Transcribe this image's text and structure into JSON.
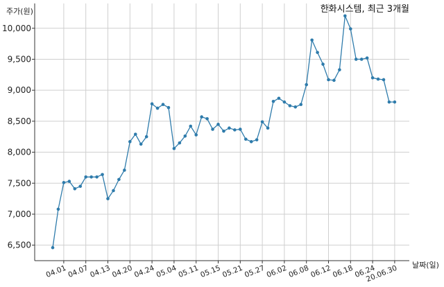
{
  "chart_data": {
    "type": "line",
    "title": "한화시스템, 최근 3개월",
    "ylabel": "주가(원)",
    "xlabel": "날짜(일)",
    "ylim": [
      6250,
      10400
    ],
    "yticks": [
      6500,
      7000,
      7500,
      8000,
      8500,
      9000,
      9500,
      10000
    ],
    "ytick_labels": [
      "6,500",
      "7,000",
      "7,500",
      "8,000",
      "8,500",
      "9,000",
      "9,500",
      "10,000"
    ],
    "grid": true,
    "color": "#2e7bab",
    "x": [
      "03.30",
      "03.31",
      "04.01",
      "04.02",
      "04.03",
      "04.06",
      "04.07",
      "04.08",
      "04.09",
      "04.10",
      "04.13",
      "04.14",
      "04.16",
      "04.17",
      "04.20",
      "04.21",
      "04.22",
      "04.23",
      "04.24",
      "04.27",
      "04.28",
      "04.29",
      "05.04",
      "05.06",
      "05.07",
      "05.08",
      "05.11",
      "05.12",
      "05.13",
      "05.14",
      "05.15",
      "05.18",
      "05.19",
      "05.20",
      "05.21",
      "05.22",
      "05.25",
      "05.26",
      "05.27",
      "05.28",
      "05.29",
      "06.01",
      "06.02",
      "06.03",
      "06.04",
      "06.05",
      "06.08",
      "06.09",
      "06.10",
      "06.11",
      "06.12",
      "06.15",
      "06.16",
      "06.17",
      "06.18",
      "06.19",
      "06.22",
      "06.23",
      "06.24",
      "06.25",
      "06.26",
      "06.29",
      "20.06.30"
    ],
    "values": [
      6460,
      7080,
      7510,
      7530,
      7410,
      7450,
      7600,
      7600,
      7600,
      7640,
      7250,
      7380,
      7560,
      7710,
      8170,
      8290,
      8130,
      8250,
      8780,
      8710,
      8770,
      8720,
      8060,
      8150,
      8260,
      8420,
      8280,
      8570,
      8540,
      8370,
      8450,
      8340,
      8390,
      8360,
      8370,
      8210,
      8170,
      8200,
      8490,
      8390,
      8820,
      8870,
      8810,
      8750,
      8730,
      8770,
      9090,
      9810,
      9610,
      9420,
      9170,
      9160,
      9330,
      10200,
      9990,
      9500,
      9500,
      9520,
      9200,
      9180,
      9170,
      8810,
      8810
    ],
    "xtick_labels": [
      "04.01",
      "04.07",
      "04.13",
      "04.20",
      "04.24",
      "05.04",
      "05.11",
      "05.15",
      "05.21",
      "05.27",
      "06.02",
      "06.08",
      "06.12",
      "06.18",
      "06.24",
      "20.06.30"
    ]
  }
}
